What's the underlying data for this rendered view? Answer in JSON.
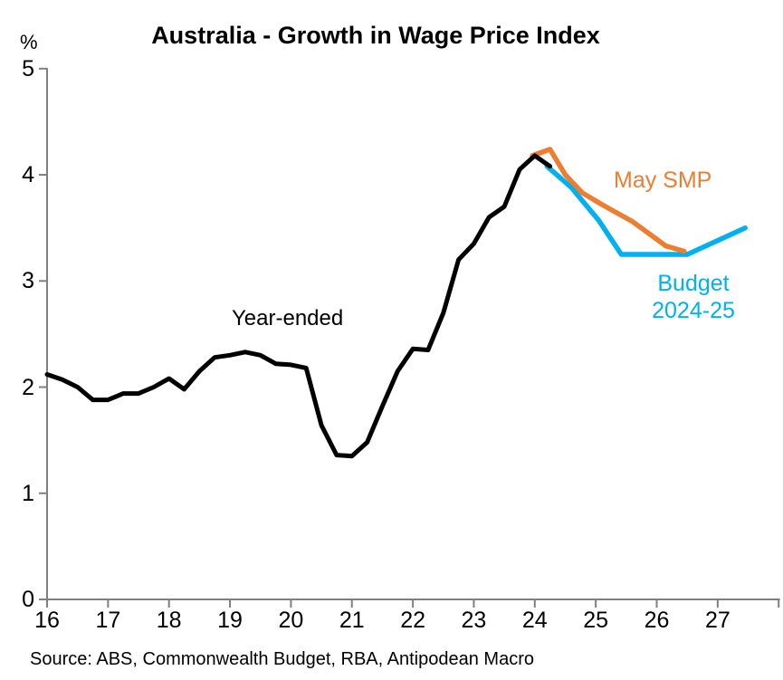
{
  "title": "Australia - Growth in Wage Price Index",
  "y_axis_unit": "%",
  "source": "Source: ABS, Commonwealth Budget, RBA, Antipodean Macro",
  "annotations": {
    "year_ended": "Year-ended",
    "may_smp": "May SMP",
    "budget_line1": "Budget",
    "budget_line2": "2024-25"
  },
  "colors": {
    "actual_line": "#000000",
    "may_smp_line": "#ED7D31",
    "budget_line": "#00B0F0",
    "axis": "#7F7F7F",
    "text": "#000000",
    "background": "#FFFFFF"
  },
  "chart_data": {
    "type": "line",
    "title": "Australia - Growth in Wage Price Index",
    "xlabel": "",
    "ylabel": "%",
    "xlim": [
      16,
      28
    ],
    "ylim": [
      0,
      5
    ],
    "grid": false,
    "legend_position": "inline-labels",
    "x_ticks": [
      16,
      17,
      18,
      19,
      20,
      21,
      22,
      23,
      24,
      25,
      26,
      27
    ],
    "x_tick_labels": [
      "16",
      "17",
      "18",
      "19",
      "20",
      "21",
      "22",
      "23",
      "24",
      "25",
      "26",
      "27"
    ],
    "extra_unlabeled_x_tick": 28,
    "y_ticks": [
      0,
      1,
      2,
      3,
      4,
      5
    ],
    "y_tick_labels": [
      "0",
      "1",
      "2",
      "3",
      "4",
      "5"
    ],
    "series": [
      {
        "name": "Year-ended",
        "color": "#000000",
        "stroke_width": 5,
        "points": [
          [
            16.0,
            2.12
          ],
          [
            16.25,
            2.07
          ],
          [
            16.5,
            2.0
          ],
          [
            16.75,
            1.88
          ],
          [
            17.0,
            1.88
          ],
          [
            17.25,
            1.94
          ],
          [
            17.5,
            1.94
          ],
          [
            17.75,
            2.0
          ],
          [
            18.0,
            2.08
          ],
          [
            18.25,
            1.98
          ],
          [
            18.5,
            2.15
          ],
          [
            18.75,
            2.28
          ],
          [
            19.0,
            2.3
          ],
          [
            19.25,
            2.33
          ],
          [
            19.5,
            2.3
          ],
          [
            19.75,
            2.22
          ],
          [
            20.0,
            2.21
          ],
          [
            20.25,
            2.18
          ],
          [
            20.5,
            1.64
          ],
          [
            20.75,
            1.36
          ],
          [
            21.0,
            1.35
          ],
          [
            21.25,
            1.48
          ],
          [
            21.5,
            1.82
          ],
          [
            21.75,
            2.15
          ],
          [
            22.0,
            2.36
          ],
          [
            22.25,
            2.35
          ],
          [
            22.5,
            2.7
          ],
          [
            22.75,
            3.2
          ],
          [
            23.0,
            3.35
          ],
          [
            23.25,
            3.6
          ],
          [
            23.5,
            3.7
          ],
          [
            23.75,
            4.05
          ],
          [
            24.0,
            4.18
          ],
          [
            24.25,
            4.08
          ]
        ]
      },
      {
        "name": "May SMP",
        "color": "#ED7D31",
        "stroke_width": 5.5,
        "points": [
          [
            23.96,
            4.18
          ],
          [
            24.25,
            4.24
          ],
          [
            24.5,
            4.0
          ],
          [
            24.78,
            3.83
          ],
          [
            25.1,
            3.72
          ],
          [
            25.6,
            3.56
          ],
          [
            26.15,
            3.33
          ],
          [
            26.45,
            3.28
          ]
        ]
      },
      {
        "name": "Budget 2024-25",
        "color": "#00B0F0",
        "stroke_width": 5.5,
        "points": [
          [
            24.2,
            4.08
          ],
          [
            24.6,
            3.88
          ],
          [
            25.05,
            3.57
          ],
          [
            25.42,
            3.25
          ],
          [
            26.5,
            3.25
          ],
          [
            27.45,
            3.5
          ]
        ]
      }
    ]
  }
}
